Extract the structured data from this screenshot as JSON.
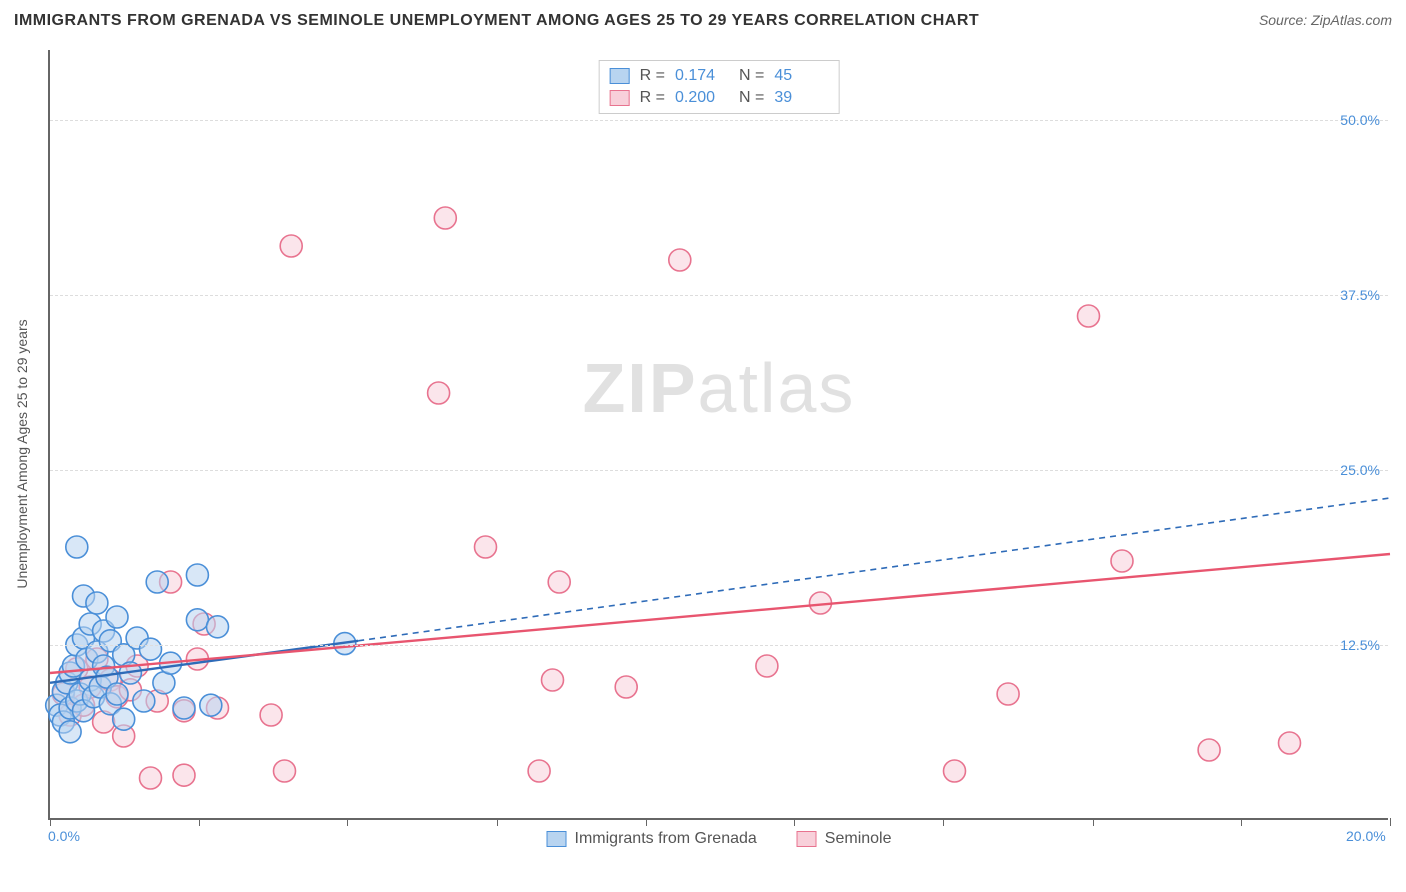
{
  "title": "IMMIGRANTS FROM GRENADA VS SEMINOLE UNEMPLOYMENT AMONG AGES 25 TO 29 YEARS CORRELATION CHART",
  "source": "Source: ZipAtlas.com",
  "y_axis_label": "Unemployment Among Ages 25 to 29 years",
  "watermark_bold": "ZIP",
  "watermark_rest": "atlas",
  "chart": {
    "type": "scatter",
    "xlim": [
      0,
      20
    ],
    "ylim": [
      0,
      55
    ],
    "x_ticks": [
      0,
      2.22,
      4.44,
      6.67,
      8.89,
      11.11,
      13.33,
      15.56,
      17.78,
      20
    ],
    "x_tick_labels_shown": {
      "0": "0.0%",
      "20": "20.0%"
    },
    "y_ticks": [
      12.5,
      25.0,
      37.5,
      50.0
    ],
    "y_tick_labels": [
      "12.5%",
      "25.0%",
      "37.5%",
      "50.0%"
    ],
    "grid_color": "#dddddd",
    "axis_color": "#666666",
    "background_color": "#ffffff",
    "tick_label_color": "#4a8fd8",
    "label_fontsize": 14,
    "title_fontsize": 16,
    "marker_radius": 11,
    "marker_stroke_width": 1.6,
    "series": [
      {
        "name": "Immigrants from Grenada",
        "fill": "#b8d4f0",
        "stroke": "#4a8fd8",
        "fill_opacity": 0.55,
        "R": "0.174",
        "N": "45",
        "trend": {
          "x1": 0,
          "y1": 9.8,
          "x2": 4.6,
          "y2": 12.8,
          "extend_x2": 20,
          "extend_y2": 23.0,
          "color": "#2e6bb8",
          "width": 2.4,
          "dash_extend": "6,5"
        },
        "points": [
          [
            0.1,
            8.2
          ],
          [
            0.15,
            7.5
          ],
          [
            0.2,
            9.2
          ],
          [
            0.2,
            7.0
          ],
          [
            0.25,
            9.8
          ],
          [
            0.3,
            8.0
          ],
          [
            0.3,
            10.5
          ],
          [
            0.3,
            6.3
          ],
          [
            0.35,
            11.0
          ],
          [
            0.4,
            8.5
          ],
          [
            0.4,
            12.5
          ],
          [
            0.4,
            19.5
          ],
          [
            0.45,
            9.0
          ],
          [
            0.5,
            13.0
          ],
          [
            0.5,
            7.8
          ],
          [
            0.5,
            16.0
          ],
          [
            0.55,
            11.5
          ],
          [
            0.6,
            10.0
          ],
          [
            0.6,
            14.0
          ],
          [
            0.65,
            8.8
          ],
          [
            0.7,
            12.0
          ],
          [
            0.7,
            15.5
          ],
          [
            0.75,
            9.5
          ],
          [
            0.8,
            11.0
          ],
          [
            0.8,
            13.5
          ],
          [
            0.85,
            10.2
          ],
          [
            0.9,
            8.3
          ],
          [
            0.9,
            12.8
          ],
          [
            1.0,
            14.5
          ],
          [
            1.0,
            9.0
          ],
          [
            1.1,
            11.8
          ],
          [
            1.1,
            7.2
          ],
          [
            1.2,
            10.5
          ],
          [
            1.3,
            13.0
          ],
          [
            1.4,
            8.5
          ],
          [
            1.5,
            12.2
          ],
          [
            1.6,
            17.0
          ],
          [
            1.7,
            9.8
          ],
          [
            1.8,
            11.2
          ],
          [
            2.0,
            8.0
          ],
          [
            2.2,
            14.3
          ],
          [
            2.2,
            17.5
          ],
          [
            2.4,
            8.2
          ],
          [
            2.5,
            13.8
          ],
          [
            4.4,
            12.6
          ]
        ]
      },
      {
        "name": "Seminole",
        "fill": "#f8d0da",
        "stroke": "#e8738f",
        "fill_opacity": 0.55,
        "R": "0.200",
        "N": "39",
        "trend": {
          "x1": 0,
          "y1": 10.5,
          "x2": 20,
          "y2": 19.0,
          "color": "#e8556f",
          "width": 2.4
        },
        "points": [
          [
            0.2,
            9.0
          ],
          [
            0.3,
            7.5
          ],
          [
            0.4,
            10.8
          ],
          [
            0.5,
            8.2
          ],
          [
            0.6,
            9.5
          ],
          [
            0.7,
            11.5
          ],
          [
            0.8,
            7.0
          ],
          [
            0.9,
            10.0
          ],
          [
            1.0,
            8.8
          ],
          [
            1.1,
            6.0
          ],
          [
            1.2,
            9.3
          ],
          [
            1.3,
            11.0
          ],
          [
            1.5,
            3.0
          ],
          [
            1.6,
            8.5
          ],
          [
            1.8,
            17.0
          ],
          [
            2.0,
            3.2
          ],
          [
            2.0,
            7.8
          ],
          [
            2.2,
            11.5
          ],
          [
            2.3,
            14.0
          ],
          [
            2.5,
            8.0
          ],
          [
            3.3,
            7.5
          ],
          [
            3.5,
            3.5
          ],
          [
            3.6,
            41.0
          ],
          [
            5.8,
            30.5
          ],
          [
            5.9,
            43.0
          ],
          [
            6.5,
            19.5
          ],
          [
            7.3,
            3.5
          ],
          [
            7.5,
            10.0
          ],
          [
            7.6,
            17.0
          ],
          [
            8.6,
            9.5
          ],
          [
            9.4,
            40.0
          ],
          [
            10.7,
            11.0
          ],
          [
            11.5,
            15.5
          ],
          [
            13.5,
            3.5
          ],
          [
            14.3,
            9.0
          ],
          [
            15.5,
            36.0
          ],
          [
            16.0,
            18.5
          ],
          [
            17.3,
            5.0
          ],
          [
            18.5,
            5.5
          ]
        ]
      }
    ]
  },
  "stat_legend": {
    "R_label": "R =",
    "N_label": "N ="
  }
}
